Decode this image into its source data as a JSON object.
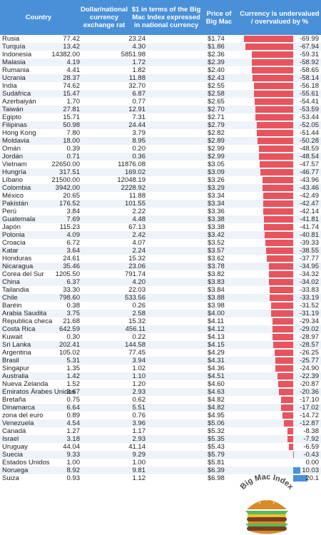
{
  "header": {
    "country": "Country",
    "exchange": "Dollar/national currency exchange rat",
    "dollar_index": "$1 in terms of the Big Mac Index expressed in national currency",
    "price": "Price of Big Mac",
    "percent": "Currency is undervalued / overvalued by %"
  },
  "logo_text": "Big Mac Index",
  "colors": {
    "header": "#4a90d9",
    "negative_bar": "#e8545e",
    "positive_bar": "#4a90d9",
    "alt_row": "#eef3fa"
  },
  "chart_data": {
    "type": "table",
    "columns": [
      "Country",
      "Dollar/national currency exchange rat",
      "$1 in terms of the Big Mac Index expressed in national currency",
      "Price of Big Mac",
      "Currency is undervalued / overvalued by %"
    ],
    "rows": [
      {
        "country": "Rusia",
        "exchange": "77.42",
        "dollar": "23.24",
        "price": "$1.74",
        "pct": "-69.99",
        "value": -69.99
      },
      {
        "country": "Turquía",
        "exchange": "13.42",
        "dollar": "4.30",
        "price": "$1.86",
        "pct": "-67.94",
        "value": -67.94
      },
      {
        "country": "Indonesia",
        "exchange": "14382.00",
        "dollar": "5851.98",
        "price": "$2.36",
        "pct": "-59.31",
        "value": -59.31
      },
      {
        "country": "Malasia",
        "exchange": "4.19",
        "dollar": "1.72",
        "price": "$2.39",
        "pct": "-58.92",
        "value": -58.92
      },
      {
        "country": "Rumania",
        "exchange": "4.41",
        "dollar": "1.82",
        "price": "$2.40",
        "pct": "-58.65",
        "value": -58.65
      },
      {
        "country": "Ucrania",
        "exchange": "28.37",
        "dollar": "11.88",
        "price": "$2.43",
        "pct": "-58.14",
        "value": -58.14
      },
      {
        "country": "India",
        "exchange": "74.62",
        "dollar": "32.70",
        "price": "$2.55",
        "pct": "-56.18",
        "value": -56.18
      },
      {
        "country": "Sudáfrica",
        "exchange": "15.47",
        "dollar": "6.87",
        "price": "$2.58",
        "pct": "-55.61",
        "value": -55.61
      },
      {
        "country": "Azerbaiyán",
        "exchange": "1.70",
        "dollar": "0.77",
        "price": "$2.65",
        "pct": "-54.41",
        "value": -54.41
      },
      {
        "country": "Taiwán",
        "exchange": "27.81",
        "dollar": "12.91",
        "price": "$2.70",
        "pct": "-53.59",
        "value": -53.59
      },
      {
        "country": "Egipto",
        "exchange": "15.71",
        "dollar": "7.31",
        "price": "$2.71",
        "pct": "-53.44",
        "value": -53.44
      },
      {
        "country": "Filipinas",
        "exchange": "50.98",
        "dollar": "24.44",
        "price": "$2.79",
        "pct": "-52.05",
        "value": -52.05
      },
      {
        "country": "Hong Kong",
        "exchange": "7.80",
        "dollar": "3.79",
        "price": "$2.82",
        "pct": "-51.44",
        "value": -51.44
      },
      {
        "country": "Moldavia",
        "exchange": "18.00",
        "dollar": "8.95",
        "price": "$2.89",
        "pct": "-50.28",
        "value": -50.28
      },
      {
        "country": "Omán",
        "exchange": "0.39",
        "dollar": "0.20",
        "price": "$2.99",
        "pct": "-48.59",
        "value": -48.59
      },
      {
        "country": "Jordán",
        "exchange": "0.71",
        "dollar": "0.36",
        "price": "$2.99",
        "pct": "-48.54",
        "value": -48.54
      },
      {
        "country": "Vietnam",
        "exchange": "22650.00",
        "dollar": "11876.08",
        "price": "$3.05",
        "pct": "-47.57",
        "value": -47.57
      },
      {
        "country": "Hungría",
        "exchange": "317.51",
        "dollar": "169.02",
        "price": "$3.09",
        "pct": "-46.77",
        "value": -46.77
      },
      {
        "country": "Líbano",
        "exchange": "21500.00",
        "dollar": "12048.19",
        "price": "$3.26",
        "pct": "-43.96",
        "value": -43.96
      },
      {
        "country": "Colombia",
        "exchange": "3942.00",
        "dollar": "2228.92",
        "price": "$3.29",
        "pct": "-43.46",
        "value": -43.46
      },
      {
        "country": "México",
        "exchange": "20.65",
        "dollar": "11.88",
        "price": "$3.34",
        "pct": "-42.49",
        "value": -42.49
      },
      {
        "country": "Pakistán",
        "exchange": "176.52",
        "dollar": "101.55",
        "price": "$3.34",
        "pct": "-42.47",
        "value": -42.47
      },
      {
        "country": "Perú",
        "exchange": "3.84",
        "dollar": "2.22",
        "price": "$3.36",
        "pct": "-42.14",
        "value": -42.14
      },
      {
        "country": "Guatemala",
        "exchange": "7.69",
        "dollar": "4.48",
        "price": "$3.38",
        "pct": "-41.81",
        "value": -41.81
      },
      {
        "country": "Japón",
        "exchange": "115.23",
        "dollar": "67.13",
        "price": "$3.38",
        "pct": "-41.74",
        "value": -41.74
      },
      {
        "country": "Polonia",
        "exchange": "4.09",
        "dollar": "2.42",
        "price": "$3.42",
        "pct": "-40.81",
        "value": -40.81
      },
      {
        "country": "Croacia",
        "exchange": "6.72",
        "dollar": "4.07",
        "price": "$3.52",
        "pct": "-39.33",
        "value": -39.33
      },
      {
        "country": "Katar",
        "exchange": "3.64",
        "dollar": "2.24",
        "price": "$3.57",
        "pct": "-38.55",
        "value": -38.55
      },
      {
        "country": "Honduras",
        "exchange": "24.61",
        "dollar": "15.32",
        "price": "$3.62",
        "pct": "-37.77",
        "value": -37.77
      },
      {
        "country": "Nicaragua",
        "exchange": "35.46",
        "dollar": "23.06",
        "price": "$3.78",
        "pct": "-34.95",
        "value": -34.95
      },
      {
        "country": "Corea del Sur",
        "exchange": "1205.50",
        "dollar": "791.74",
        "price": "$3.82",
        "pct": "-34.32",
        "value": -34.32
      },
      {
        "country": "China",
        "exchange": "6.37",
        "dollar": "4.20",
        "price": "$3.83",
        "pct": "-34.02",
        "value": -34.02
      },
      {
        "country": "Tailandia",
        "exchange": "33.30",
        "dollar": "22.03",
        "price": "$3.84",
        "pct": "-33.83",
        "value": -33.83
      },
      {
        "country": "Chile",
        "exchange": "798.60",
        "dollar": "533.56",
        "price": "$3.88",
        "pct": "-33.19",
        "value": -33.19
      },
      {
        "country": "Baréin",
        "exchange": "0.38",
        "dollar": "0.26",
        "price": "$3.98",
        "pct": "-31.52",
        "value": -31.52
      },
      {
        "country": "Arabia Saudita",
        "exchange": "3.75",
        "dollar": "2.58",
        "price": "$4.00",
        "pct": "-31.19",
        "value": -31.19
      },
      {
        "country": "Republica checa",
        "exchange": "21.68",
        "dollar": "15.32",
        "price": "$4.11",
        "pct": "-29.34",
        "value": -29.34
      },
      {
        "country": "Costa Rica",
        "exchange": "642.59",
        "dollar": "456.11",
        "price": "$4.12",
        "pct": "-29.02",
        "value": -29.02
      },
      {
        "country": "Kuwait",
        "exchange": "0.30",
        "dollar": "0.22",
        "price": "$4.13",
        "pct": "-28.97",
        "value": -28.97
      },
      {
        "country": "Sri Lanka",
        "exchange": "202.41",
        "dollar": "144.58",
        "price": "$4.15",
        "pct": "-28.57",
        "value": -28.57
      },
      {
        "country": "Argentina",
        "exchange": "105.02",
        "dollar": "77.45",
        "price": "$4.29",
        "pct": "-26.25",
        "value": -26.25
      },
      {
        "country": "Brasil",
        "exchange": "5.31",
        "dollar": "3.94",
        "price": "$4.31",
        "pct": "-25.77",
        "value": -25.77
      },
      {
        "country": "Singapur",
        "exchange": "1.35",
        "dollar": "1.02",
        "price": "$4.36",
        "pct": "-24.90",
        "value": -24.9
      },
      {
        "country": "Australia",
        "exchange": "1.42",
        "dollar": "1.10",
        "price": "$4.51",
        "pct": "-22.39",
        "value": -22.39
      },
      {
        "country": "Nueva Zelanda",
        "exchange": "1.52",
        "dollar": "1.20",
        "price": "$4.60",
        "pct": "-20.87",
        "value": -20.87
      },
      {
        "country": "Emiratos Árabes Unidos",
        "exchange": "3.67",
        "dollar": "2.93",
        "price": "$4.63",
        "pct": "-20.36",
        "value": -20.36
      },
      {
        "country": "Bretaña",
        "exchange": "0.75",
        "dollar": "0.62",
        "price": "$4.82",
        "pct": "-17.10",
        "value": -17.1
      },
      {
        "country": "Dinamarca",
        "exchange": "6.64",
        "dollar": "5.51",
        "price": "$4.82",
        "pct": "-17.02",
        "value": -17.02
      },
      {
        "country": "zona del euro",
        "exchange": "0.89",
        "dollar": "0.76",
        "price": "$4.95",
        "pct": "-14.72",
        "value": -14.72
      },
      {
        "country": "Venezuela",
        "exchange": "4.54",
        "dollar": "3.96",
        "price": "$5.06",
        "pct": "-12.87",
        "value": -12.87
      },
      {
        "country": "Canadá",
        "exchange": "1.27",
        "dollar": "1.17",
        "price": "$5.32",
        "pct": "-8.38",
        "value": -8.38
      },
      {
        "country": "Israel",
        "exchange": "3.18",
        "dollar": "2.93",
        "price": "$5.35",
        "pct": "-7.92",
        "value": -7.92
      },
      {
        "country": "Uruguay",
        "exchange": "44.04",
        "dollar": "41.14",
        "price": "$5.43",
        "pct": "-6.59",
        "value": -6.59
      },
      {
        "country": "Suecia",
        "exchange": "9.33",
        "dollar": "9.29",
        "price": "$5.79",
        "pct": "-0.43",
        "value": -0.43
      },
      {
        "country": "Estados Unidos",
        "exchange": "1.00",
        "dollar": "1.00",
        "price": "$5.81",
        "pct": "0.00",
        "value": 0.0
      },
      {
        "country": "Noruega",
        "exchange": "8.92",
        "dollar": "9.81",
        "price": "$6.39",
        "pct": "10.03",
        "value": 10.03
      },
      {
        "country": "Suiza",
        "exchange": "0.93",
        "dollar": "1.12",
        "price": "$6.98",
        "pct": "20.1",
        "value": 20.1
      }
    ]
  }
}
